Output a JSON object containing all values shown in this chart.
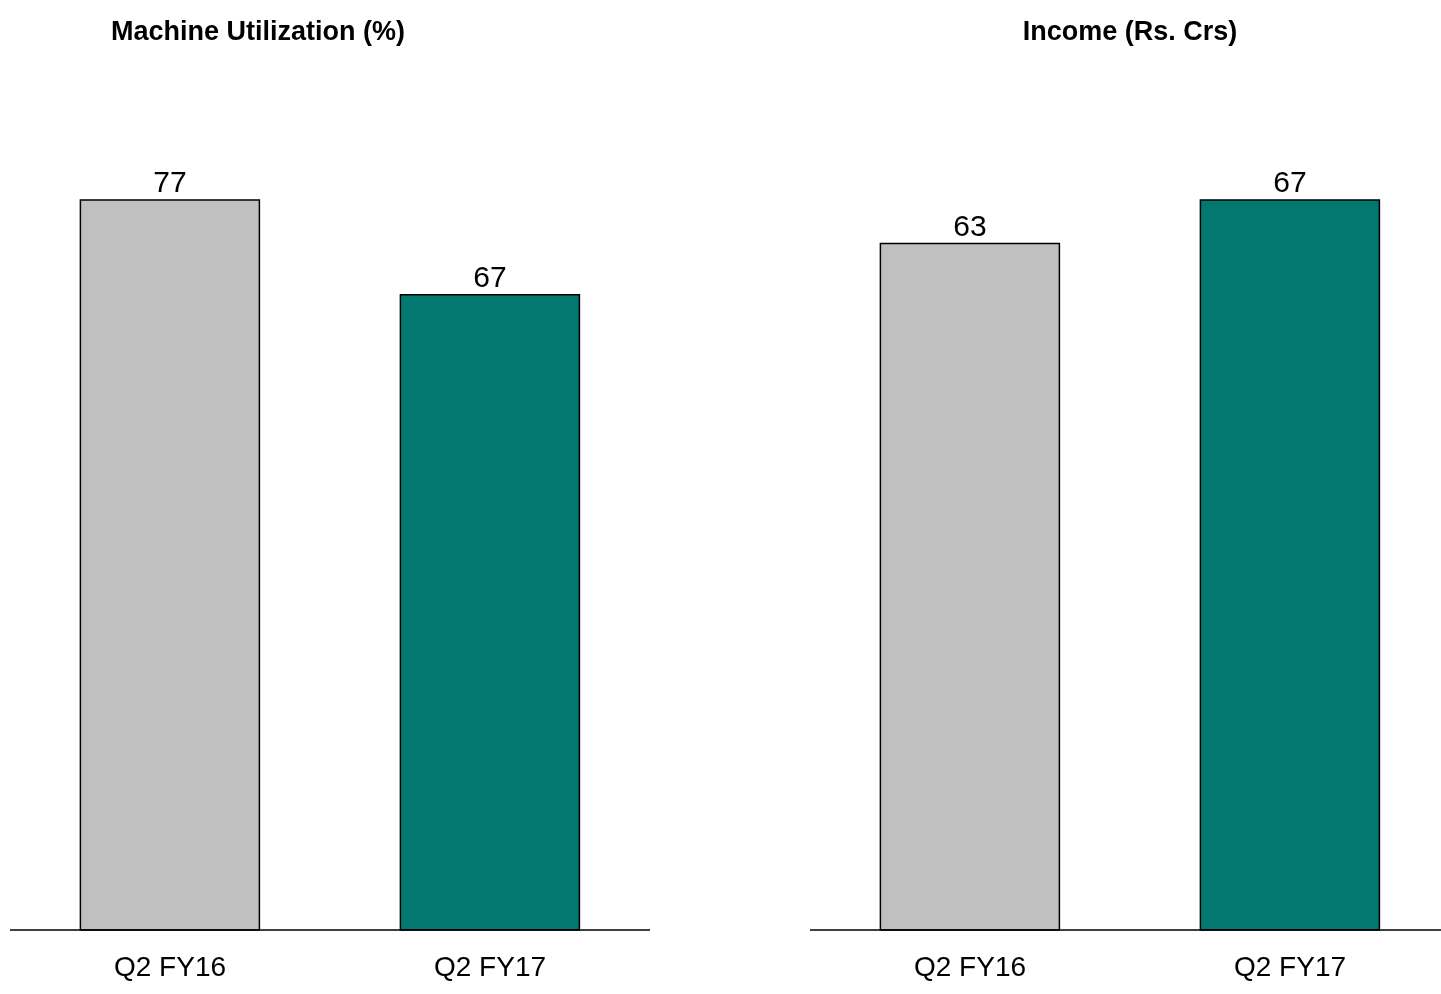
{
  "chart_data": [
    {
      "type": "bar",
      "title": "Machine Utilization (%)",
      "categories": [
        "Q2 FY16",
        "Q2 FY17"
      ],
      "values": [
        77,
        67
      ],
      "colors": [
        "#c0c0c0",
        "#037870"
      ],
      "data_labels": true,
      "grid": false,
      "legend": false
    },
    {
      "type": "bar",
      "title": "Income (Rs. Crs)",
      "categories": [
        "Q2 FY16",
        "Q2 FY17"
      ],
      "values": [
        63,
        67
      ],
      "colors": [
        "#c0c0c0",
        "#037870"
      ],
      "data_labels": true,
      "grid": false,
      "legend": false
    }
  ]
}
